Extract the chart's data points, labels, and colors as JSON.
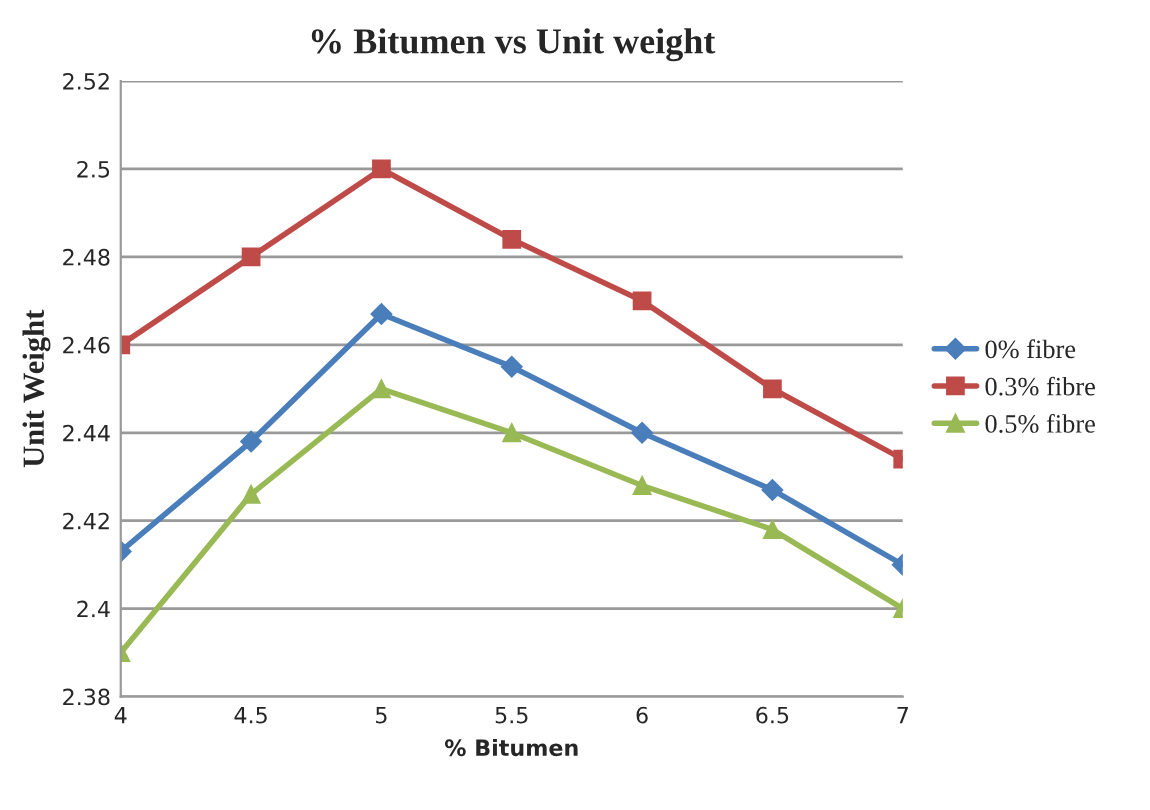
{
  "chart_data": {
    "type": "line",
    "title": "% Bitumen vs Unit weight",
    "xlabel": "% Bitumen",
    "ylabel": "Unit Weight",
    "x": [
      4,
      4.5,
      5,
      5.5,
      6,
      6.5,
      7
    ],
    "series": [
      {
        "name": "0% fibre",
        "color": "#4a7ebb",
        "marker": "diamond",
        "values": [
          2.413,
          2.438,
          2.467,
          2.455,
          2.44,
          2.427,
          2.41
        ]
      },
      {
        "name": "0.3% fibre",
        "color": "#be4b48",
        "marker": "square",
        "values": [
          2.46,
          2.48,
          2.5,
          2.484,
          2.47,
          2.45,
          2.434
        ]
      },
      {
        "name": "0.5% fibre",
        "color": "#98b954",
        "marker": "triangle",
        "values": [
          2.39,
          2.426,
          2.45,
          2.44,
          2.428,
          2.418,
          2.4
        ]
      }
    ],
    "xlim": [
      4,
      7
    ],
    "xticks": [
      4,
      4.5,
      5,
      5.5,
      6,
      6.5,
      7
    ],
    "ylim": [
      2.38,
      2.52
    ],
    "yticks": [
      2.38,
      2.4,
      2.42,
      2.44,
      2.46,
      2.48,
      2.5,
      2.52
    ],
    "grid": "y",
    "legend": "right",
    "line_style": "solid"
  }
}
